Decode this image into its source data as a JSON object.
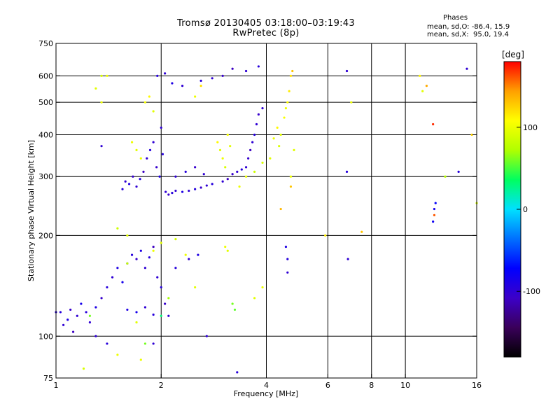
{
  "title": "Tromsø 20130405 03:18:00–03:19:43",
  "subtitle": "RwPretec (8p)",
  "stats": {
    "heading": "Phases",
    "line_o": "mean, sd,O: -86.4, 15.9",
    "line_x": "mean, sd,X:  95.0, 19.4"
  },
  "colorbar": {
    "unit_label": "[deg]",
    "ticks": [
      {
        "value": 100,
        "label": "100"
      },
      {
        "value": 0,
        "label": "0"
      },
      {
        "value": -100,
        "label": "-100"
      }
    ],
    "range": [
      -180,
      180
    ],
    "palette": [
      "#000000",
      "#3a005a",
      "#3c00c8",
      "#0000ff",
      "#0070ff",
      "#00e0ff",
      "#00ff60",
      "#b0ff00",
      "#ffff00",
      "#ffa000",
      "#ff0000"
    ]
  },
  "chart_data": {
    "type": "scatter",
    "title": "Tromsø 20130405 03:18:00–03:19:43",
    "subtitle": "RwPretec (8p)",
    "xlabel": "Frequency [MHz]",
    "ylabel": "Stationary phase Virtual Height [km]",
    "x_scale": "log",
    "y_scale": "log",
    "xlim": [
      1,
      16
    ],
    "ylim": [
      75,
      750
    ],
    "xticks": [
      {
        "value": 1,
        "label": "1"
      },
      {
        "value": 2,
        "label": "2"
      },
      {
        "value": 4,
        "label": "4"
      },
      {
        "value": 6,
        "label": "6"
      },
      {
        "value": 8,
        "label": "8"
      },
      {
        "value": 10,
        "label": "10"
      },
      {
        "value": 16,
        "label": "16"
      }
    ],
    "yticks": [
      {
        "value": 75,
        "label": "75"
      },
      {
        "value": 100,
        "label": "100"
      },
      {
        "value": 200,
        "label": "200"
      },
      {
        "value": 300,
        "label": "300"
      },
      {
        "value": 400,
        "label": "400"
      },
      {
        "value": 500,
        "label": "500"
      },
      {
        "value": 600,
        "label": "600"
      },
      {
        "value": 750,
        "label": "750"
      }
    ],
    "grid_x": [
      2,
      4,
      6,
      8,
      10
    ],
    "grid_y": [
      100,
      200,
      300,
      400,
      500,
      600
    ],
    "series": [
      {
        "component": "O-mode",
        "points": [
          [
            1.03,
            118,
            -95
          ],
          [
            1.05,
            108,
            -100
          ],
          [
            1.08,
            112,
            -90
          ],
          [
            1.1,
            120,
            -105
          ],
          [
            1.12,
            103,
            -110
          ],
          [
            1.15,
            115,
            -100
          ],
          [
            1.18,
            125,
            -85
          ],
          [
            1.22,
            118,
            -95
          ],
          [
            1.25,
            110,
            -100
          ],
          [
            1.3,
            122,
            -90
          ],
          [
            1.35,
            130,
            -105
          ],
          [
            1.4,
            140,
            -95
          ],
          [
            1.45,
            150,
            -100
          ],
          [
            1.5,
            160,
            -90
          ],
          [
            1.55,
            145,
            -85
          ],
          [
            1.6,
            165,
            -100
          ],
          [
            1.65,
            175,
            -95
          ],
          [
            1.7,
            170,
            -105
          ],
          [
            1.75,
            180,
            -90
          ],
          [
            1.8,
            160,
            -100
          ],
          [
            1.85,
            172,
            -95
          ],
          [
            1.9,
            185,
            -110
          ],
          [
            1.95,
            150,
            -100
          ],
          [
            2.0,
            140,
            -95
          ],
          [
            1.6,
            120,
            -90
          ],
          [
            1.7,
            118,
            -85
          ],
          [
            1.8,
            122,
            -100
          ],
          [
            1.9,
            116,
            -95
          ],
          [
            2.05,
            125,
            -105
          ],
          [
            2.1,
            115,
            -100
          ],
          [
            1.55,
            275,
            -95
          ],
          [
            1.58,
            290,
            -100
          ],
          [
            1.62,
            285,
            -90
          ],
          [
            1.66,
            300,
            -105
          ],
          [
            1.7,
            280,
            -100
          ],
          [
            1.74,
            295,
            -95
          ],
          [
            1.78,
            310,
            -110
          ],
          [
            1.82,
            340,
            -100
          ],
          [
            1.86,
            360,
            -95
          ],
          [
            1.9,
            380,
            -100
          ],
          [
            1.94,
            320,
            -105
          ],
          [
            1.98,
            300,
            -90
          ],
          [
            2.0,
            420,
            -100
          ],
          [
            2.02,
            350,
            -95
          ],
          [
            2.06,
            270,
            -100
          ],
          [
            2.1,
            265,
            -105
          ],
          [
            2.15,
            268,
            -95
          ],
          [
            2.2,
            272,
            -100
          ],
          [
            2.3,
            270,
            -90
          ],
          [
            2.4,
            272,
            -100
          ],
          [
            2.5,
            275,
            -95
          ],
          [
            2.6,
            278,
            -105
          ],
          [
            2.7,
            282,
            -100
          ],
          [
            2.8,
            285,
            -95
          ],
          [
            2.2,
            300,
            -100
          ],
          [
            2.35,
            310,
            -95
          ],
          [
            2.5,
            320,
            -105
          ],
          [
            2.65,
            305,
            -100
          ],
          [
            1.95,
            600,
            -95
          ],
          [
            2.05,
            610,
            -100
          ],
          [
            2.15,
            570,
            -90
          ],
          [
            2.3,
            560,
            -100
          ],
          [
            2.6,
            580,
            -95
          ],
          [
            2.8,
            590,
            -100
          ],
          [
            3.0,
            600,
            -105
          ],
          [
            3.2,
            630,
            -110
          ],
          [
            3.5,
            620,
            -100
          ],
          [
            3.8,
            640,
            -95
          ],
          [
            3.0,
            290,
            -100
          ],
          [
            3.1,
            295,
            -110
          ],
          [
            3.2,
            305,
            -105
          ],
          [
            3.3,
            310,
            -100
          ],
          [
            3.4,
            315,
            -95
          ],
          [
            3.5,
            320,
            -100
          ],
          [
            3.55,
            340,
            -105
          ],
          [
            3.6,
            360,
            -110
          ],
          [
            3.65,
            380,
            -100
          ],
          [
            3.7,
            400,
            -95
          ],
          [
            3.75,
            430,
            -100
          ],
          [
            3.8,
            460,
            -105
          ],
          [
            3.9,
            480,
            -100
          ],
          [
            4.6,
            170,
            -95
          ],
          [
            4.6,
            155,
            -100
          ],
          [
            4.55,
            185,
            -90
          ],
          [
            6.8,
            620,
            -100
          ],
          [
            6.8,
            310,
            -95
          ],
          [
            6.85,
            170,
            -100
          ],
          [
            12.0,
            220,
            -80
          ],
          [
            12.1,
            240,
            -85
          ],
          [
            12.2,
            250,
            -75
          ],
          [
            14.2,
            310,
            -95
          ],
          [
            15.0,
            630,
            -100
          ],
          [
            2.7,
            100,
            -100
          ],
          [
            3.3,
            78,
            -95
          ],
          [
            1.3,
            100,
            -100
          ],
          [
            1.4,
            95,
            -95
          ],
          [
            1.9,
            95,
            -100
          ],
          [
            2.2,
            160,
            -95
          ],
          [
            2.4,
            170,
            -100
          ],
          [
            2.55,
            175,
            -90
          ],
          [
            1.35,
            370,
            -100
          ],
          [
            1.0,
            118,
            -95
          ]
        ]
      },
      {
        "component": "X-mode",
        "points": [
          [
            4.2,
            390,
            100
          ],
          [
            4.3,
            420,
            110
          ],
          [
            4.4,
            400,
            95
          ],
          [
            4.5,
            450,
            105
          ],
          [
            4.55,
            480,
            100
          ],
          [
            4.6,
            500,
            110
          ],
          [
            4.65,
            540,
            115
          ],
          [
            4.7,
            600,
            120
          ],
          [
            4.75,
            620,
            130
          ],
          [
            4.8,
            360,
            95
          ],
          [
            4.35,
            370,
            90
          ],
          [
            4.1,
            340,
            95
          ],
          [
            3.9,
            330,
            90
          ],
          [
            3.7,
            310,
            85
          ],
          [
            3.5,
            300,
            100
          ],
          [
            2.9,
            380,
            110
          ],
          [
            2.95,
            360,
            95
          ],
          [
            3.0,
            340,
            100
          ],
          [
            3.05,
            320,
            90
          ],
          [
            3.1,
            400,
            105
          ],
          [
            3.15,
            370,
            95
          ],
          [
            1.65,
            380,
            100
          ],
          [
            1.7,
            360,
            95
          ],
          [
            1.75,
            340,
            100
          ],
          [
            1.8,
            500,
            105
          ],
          [
            1.85,
            520,
            110
          ],
          [
            1.9,
            470,
            95
          ],
          [
            1.6,
            200,
            95
          ],
          [
            1.9,
            180,
            100
          ],
          [
            2.0,
            190,
            95
          ],
          [
            2.2,
            195,
            90
          ],
          [
            2.35,
            175,
            100
          ],
          [
            2.5,
            140,
            95
          ],
          [
            3.05,
            185,
            100
          ],
          [
            3.1,
            180,
            95
          ],
          [
            3.2,
            125,
            60
          ],
          [
            3.25,
            120,
            55
          ],
          [
            3.35,
            280,
            100
          ],
          [
            3.7,
            130,
            95
          ],
          [
            3.9,
            140,
            100
          ],
          [
            1.35,
            600,
            90
          ],
          [
            1.3,
            550,
            95
          ],
          [
            1.35,
            500,
            100
          ],
          [
            1.5,
            210,
            85
          ],
          [
            1.6,
            165,
            80
          ],
          [
            1.7,
            110,
            95
          ],
          [
            1.8,
            95,
            60
          ],
          [
            1.75,
            85,
            100
          ],
          [
            1.2,
            80,
            90
          ],
          [
            1.5,
            88,
            100
          ],
          [
            2.5,
            520,
            100
          ],
          [
            2.6,
            560,
            120
          ],
          [
            4.7,
            280,
            130
          ],
          [
            4.4,
            240,
            135
          ],
          [
            5.9,
            200,
            115
          ],
          [
            7.0,
            500,
            100
          ],
          [
            7.5,
            205,
            130
          ],
          [
            11.0,
            600,
            110
          ],
          [
            11.2,
            540,
            95
          ],
          [
            11.5,
            560,
            140
          ],
          [
            12.1,
            230,
            160
          ],
          [
            12.0,
            430,
            170
          ],
          [
            15.5,
            400,
            125
          ],
          [
            16.0,
            250,
            90
          ],
          [
            13.0,
            300,
            75
          ],
          [
            1.4,
            600,
            100
          ],
          [
            2.1,
            130,
            70
          ],
          [
            1.25,
            115,
            60
          ],
          [
            2.0,
            115,
            30
          ],
          [
            4.7,
            300,
            100
          ]
        ]
      }
    ]
  }
}
